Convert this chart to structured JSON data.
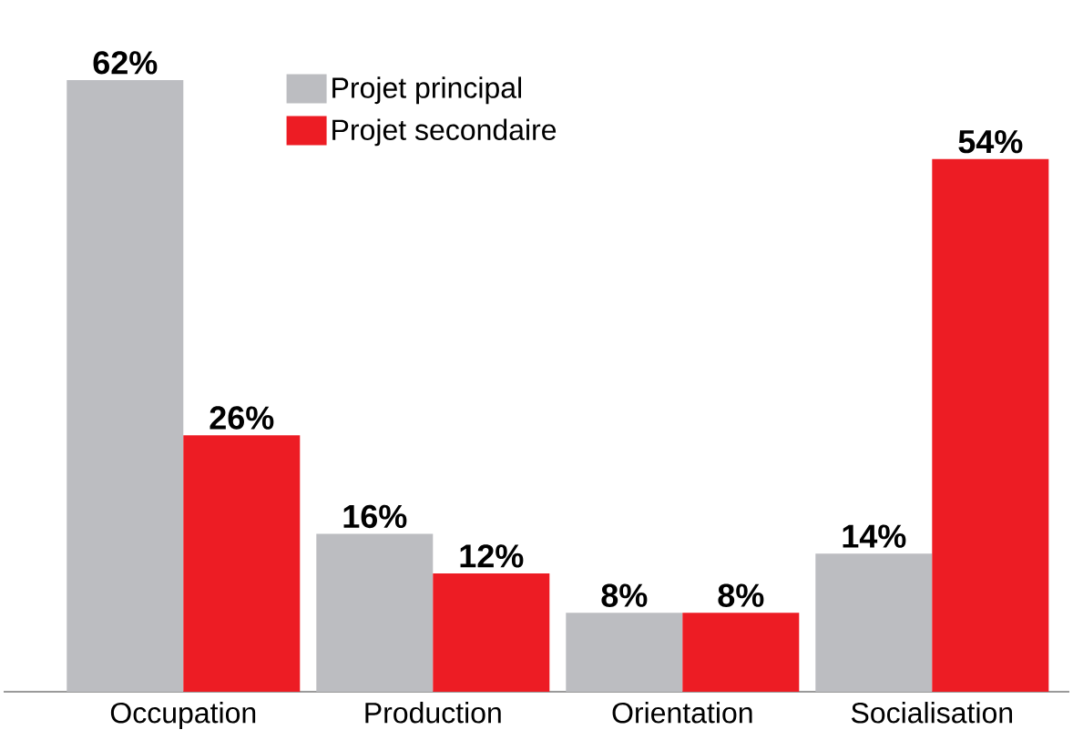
{
  "chart_data": {
    "type": "bar",
    "categories": [
      "Occupation",
      "Production",
      "Orientation",
      "Socialisation"
    ],
    "series": [
      {
        "name": "Projet principal",
        "color": "#bcbdc1",
        "values": [
          62,
          16,
          8,
          14
        ],
        "value_labels": [
          "62%",
          "16%",
          "8%",
          "14%"
        ]
      },
      {
        "name": "Projet secondaire",
        "color": "#ed1c24",
        "values": [
          26,
          12,
          8,
          54
        ],
        "value_labels": [
          "26%",
          "12%",
          "8%",
          "54%"
        ]
      }
    ],
    "legend": "top",
    "tick_labels": "x"
  }
}
